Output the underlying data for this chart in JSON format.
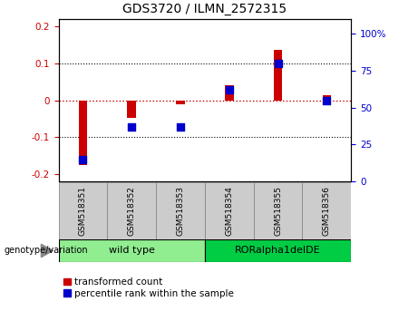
{
  "title": "GDS3720 / ILMN_2572315",
  "categories": [
    "GSM518351",
    "GSM518352",
    "GSM518353",
    "GSM518354",
    "GSM518355",
    "GSM518356"
  ],
  "red_values": [
    -0.175,
    -0.048,
    -0.01,
    0.042,
    0.138,
    0.013
  ],
  "blue_values_pct": [
    15,
    37,
    37,
    62,
    80,
    55
  ],
  "group_labels": [
    "wild type",
    "RORalpha1delDE"
  ],
  "group_ranges": [
    [
      0,
      3
    ],
    [
      3,
      6
    ]
  ],
  "group_colors": [
    "#90EE90",
    "#00CC44"
  ],
  "ylim_left": [
    -0.22,
    0.22
  ],
  "ylim_right": [
    0,
    110
  ],
  "yticks_left": [
    -0.2,
    -0.1,
    0,
    0.1,
    0.2
  ],
  "yticks_right": [
    0,
    25,
    50,
    75,
    100
  ],
  "red_color": "#CC0000",
  "blue_color": "#0000CC",
  "dashed_zero_color": "#CC0000",
  "label_transformed": "transformed count",
  "label_percentile": "percentile rank within the sample",
  "bar_width": 0.18,
  "dot_size": 28,
  "title_fontsize": 10,
  "tick_fontsize": 7.5,
  "label_fontsize": 7.5
}
